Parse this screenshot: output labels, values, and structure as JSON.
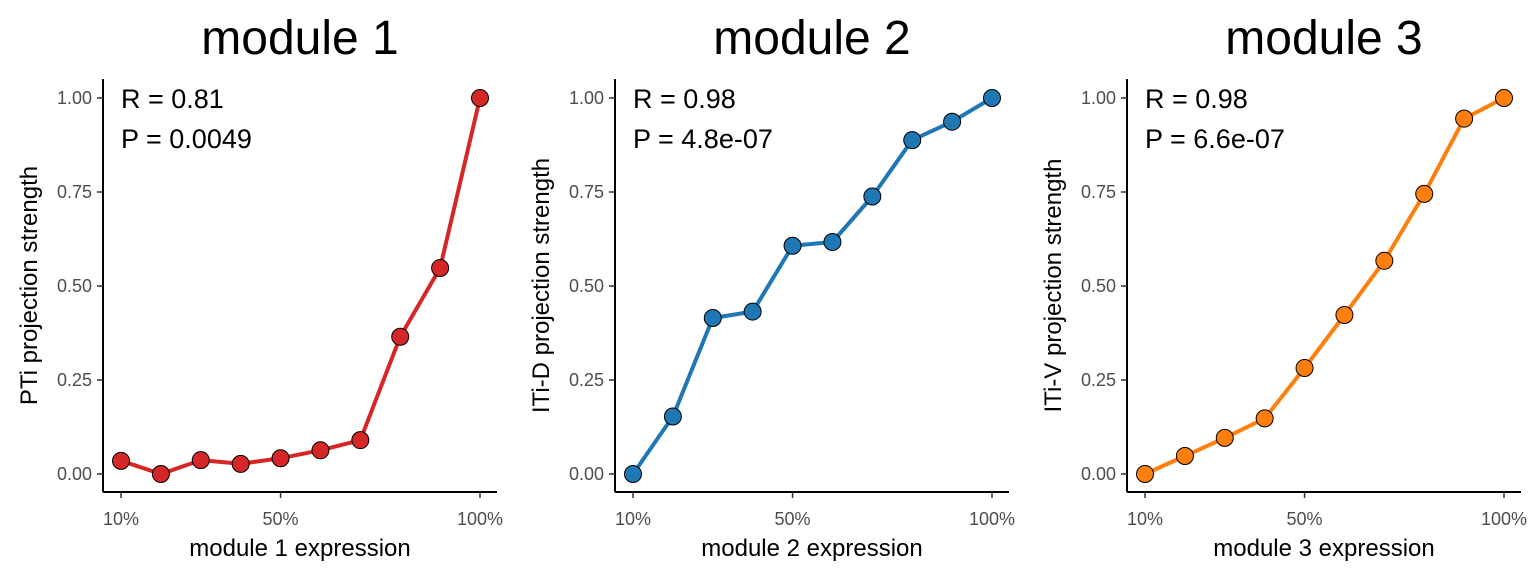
{
  "chart_data": [
    {
      "type": "line",
      "title": "module 1",
      "xlabel": "module 1 expression",
      "ylabel": "PTi projection strength",
      "x": [
        10,
        20,
        30,
        40,
        50,
        60,
        70,
        80,
        90,
        100
      ],
      "y": [
        0.035,
        0.0,
        0.037,
        0.027,
        0.042,
        0.063,
        0.09,
        0.365,
        0.548,
        1.0
      ],
      "xlim": [
        10,
        100
      ],
      "ylim": [
        0,
        1
      ],
      "xticks": [
        10,
        50,
        100
      ],
      "xtick_labels": [
        "10%",
        "50%",
        "100%"
      ],
      "yticks": [
        0,
        0.25,
        0.5,
        0.75,
        1
      ],
      "ytick_labels": [
        "0.00",
        "0.25",
        "0.50",
        "0.75",
        "1.00"
      ],
      "annotations": [
        "R = 0.81",
        "P = 0.0049"
      ],
      "color": "#d62728",
      "grid": false,
      "legend": "none"
    },
    {
      "type": "line",
      "title": "module 2",
      "xlabel": "module 2 expression",
      "ylabel": "ITi-D projection strength",
      "x": [
        10,
        20,
        30,
        40,
        50,
        60,
        70,
        80,
        90,
        100
      ],
      "y": [
        0.0,
        0.153,
        0.415,
        0.432,
        0.607,
        0.617,
        0.738,
        0.888,
        0.937,
        1.0
      ],
      "xlim": [
        10,
        100
      ],
      "ylim": [
        0,
        1
      ],
      "xticks": [
        10,
        50,
        100
      ],
      "xtick_labels": [
        "10%",
        "50%",
        "100%"
      ],
      "yticks": [
        0,
        0.25,
        0.5,
        0.75,
        1
      ],
      "ytick_labels": [
        "0.00",
        "0.25",
        "0.50",
        "0.75",
        "1.00"
      ],
      "annotations": [
        "R = 0.98",
        "P = 4.8e-07"
      ],
      "color": "#1f77b4",
      "grid": false,
      "legend": "none"
    },
    {
      "type": "line",
      "title": "module 3",
      "xlabel": "module 3 expression",
      "ylabel": "ITi-V projection strength",
      "x": [
        10,
        20,
        30,
        40,
        50,
        60,
        70,
        80,
        90,
        100
      ],
      "y": [
        0.0,
        0.048,
        0.096,
        0.148,
        0.282,
        0.423,
        0.567,
        0.745,
        0.945,
        1.0
      ],
      "xlim": [
        10,
        100
      ],
      "ylim": [
        0,
        1
      ],
      "xticks": [
        10,
        50,
        100
      ],
      "xtick_labels": [
        "10%",
        "50%",
        "100%"
      ],
      "yticks": [
        0,
        0.25,
        0.5,
        0.75,
        1
      ],
      "ytick_labels": [
        "0.00",
        "0.25",
        "0.50",
        "0.75",
        "1.00"
      ],
      "annotations": [
        "R = 0.98",
        "P = 6.6e-07"
      ],
      "color": "#ff7f0e",
      "grid": false,
      "legend": "none"
    }
  ]
}
